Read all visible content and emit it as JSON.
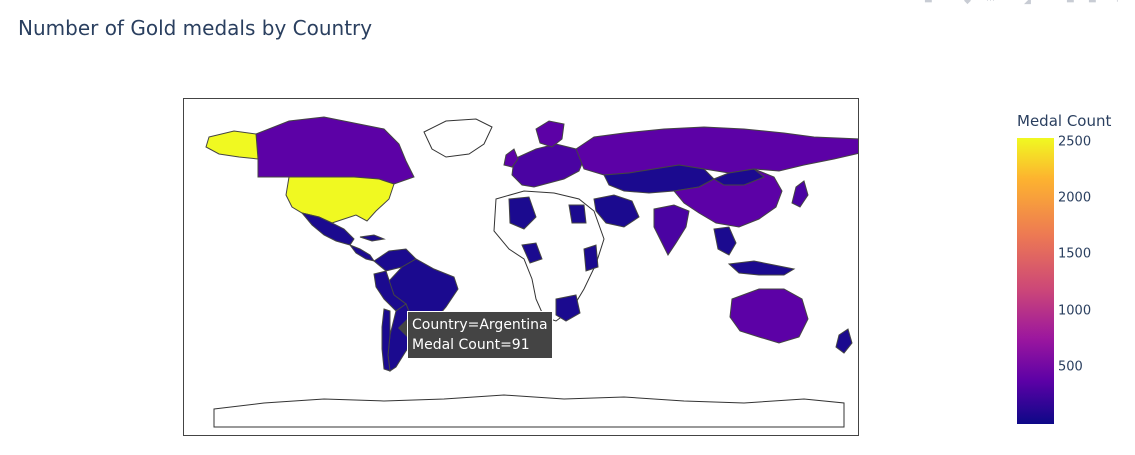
{
  "title": "Number of Gold medals by Country",
  "colorbar": {
    "title": "Medal Count",
    "ticks": [
      "2500",
      "2000",
      "1500",
      "1000",
      "500"
    ],
    "scale": [
      "#0d0887",
      "#5c01a6",
      "#9c179e",
      "#cc4778",
      "#ed7953",
      "#fdb42f",
      "#f0f921"
    ]
  },
  "tooltip": {
    "line1": "Country=Argentina",
    "line2": "Medal Count=91"
  },
  "colors": {
    "usa": "#f0f921",
    "high": "#5c01a6",
    "mid": "#4a03a2",
    "low": "#1b0a8f",
    "none": "#ffffff"
  }
}
